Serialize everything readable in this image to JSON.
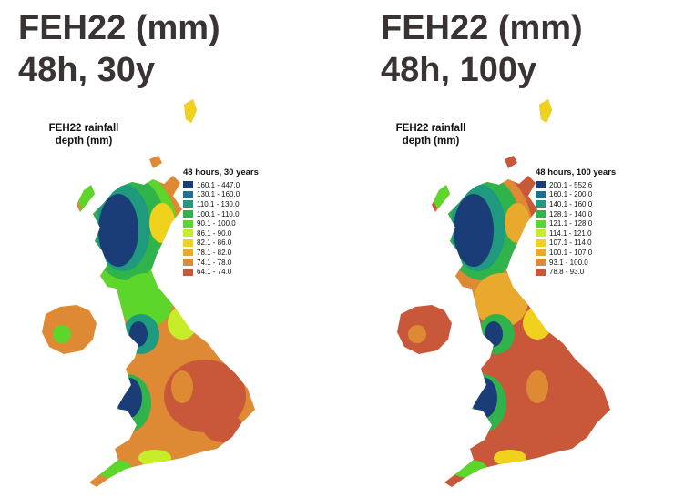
{
  "panels": [
    {
      "title_line1": "FEH22 (mm)",
      "title_line2": "48h, 30y",
      "map_caption_line1": "FEH22 rainfall",
      "map_caption_line2": "depth (mm)",
      "legend_title": "48 hours, 30 years",
      "legend": [
        {
          "label": "160.1 - 447.0",
          "color": "#1a3d78"
        },
        {
          "label": "130.1 - 160.0",
          "color": "#1f6f8f"
        },
        {
          "label": "110.1 - 130.0",
          "color": "#1f9a7e"
        },
        {
          "label": "100.1 - 110.0",
          "color": "#2fb34a"
        },
        {
          "label": "90.1 - 100.0",
          "color": "#5cd62a"
        },
        {
          "label": "86.1 - 90.0",
          "color": "#c7ec2a"
        },
        {
          "label": "82.1 - 86.0",
          "color": "#f0d21e"
        },
        {
          "label": "78.1 - 82.0",
          "color": "#e9a92c"
        },
        {
          "label": "74.1 - 78.0",
          "color": "#de8a34"
        },
        {
          "label": "64.1 - 74.0",
          "color": "#c9573a"
        }
      ]
    },
    {
      "title_line1": "FEH22 (mm)",
      "title_line2": "48h, 100y",
      "map_caption_line1": "FEH22 rainfall",
      "map_caption_line2": "depth (mm)",
      "legend_title": "48 hours, 100 years",
      "legend": [
        {
          "label": "200.1 - 552.6",
          "color": "#1a3d78"
        },
        {
          "label": "160.1 - 200.0",
          "color": "#1f6f8f"
        },
        {
          "label": "140.1 - 160.0",
          "color": "#1f9a7e"
        },
        {
          "label": "128.1 - 140.0",
          "color": "#2fb34a"
        },
        {
          "label": "121.1 - 128.0",
          "color": "#5cd62a"
        },
        {
          "label": "114.1 - 121.0",
          "color": "#c7ec2a"
        },
        {
          "label": "107.1 - 114.0",
          "color": "#f0d21e"
        },
        {
          "label": "100.1 - 107.0",
          "color": "#e9a92c"
        },
        {
          "label": "93.1 - 100.0",
          "color": "#de8a34"
        },
        {
          "label": "78.8 - 93.0",
          "color": "#c9573a"
        }
      ]
    }
  ]
}
